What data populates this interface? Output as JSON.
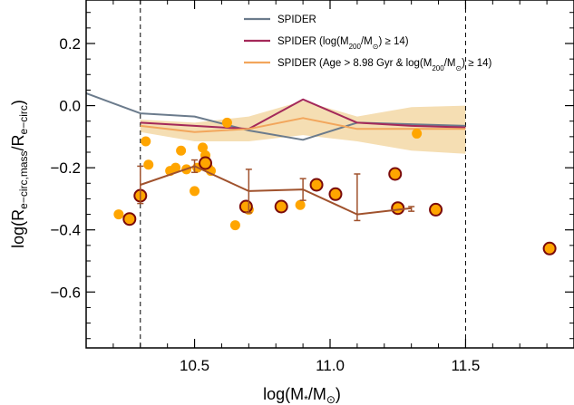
{
  "chart_data": {
    "type": "scatter",
    "title": "",
    "xlabel": "log(M*/M⊙)",
    "ylabel": "log(Re–circ,mass/Re–circ)",
    "xlim": [
      10.1,
      11.9
    ],
    "ylim": [
      -0.78,
      0.34
    ],
    "xticks": [
      10.5,
      11.0,
      11.5
    ],
    "xtick_labels": [
      "10.5",
      "11.0",
      "11.5"
    ],
    "yticks": [
      -0.6,
      -0.4,
      -0.2,
      0.0,
      0.2
    ],
    "ytick_labels": [
      "−0.6",
      "−0.4",
      "−0.2",
      "0.0",
      "0.2"
    ],
    "grid": false,
    "legend_position": "top-right",
    "vlines": [
      10.3,
      11.5
    ],
    "series": [
      {
        "name": "SPIDER",
        "kind": "line",
        "color": "#6b7b8c",
        "x": [
          10.1,
          10.3,
          10.5,
          10.7,
          10.9,
          11.1,
          11.3,
          11.5
        ],
        "y": [
          0.04,
          -0.025,
          -0.035,
          -0.08,
          -0.11,
          -0.055,
          -0.06,
          -0.065
        ]
      },
      {
        "name": "SPIDER (log(M200/M⊙) ≥ 14)",
        "kind": "line",
        "color": "#a4295a",
        "x": [
          10.3,
          10.5,
          10.7,
          10.9,
          11.1,
          11.3,
          11.5
        ],
        "y": [
          -0.055,
          -0.065,
          -0.075,
          0.02,
          -0.055,
          -0.065,
          -0.07
        ]
      },
      {
        "name": "SPIDER (Age > 8.98 Gyr & log(M200/M⊙) ≥ 14)",
        "kind": "line_band",
        "color": "#f2a65c",
        "band_color": "#f5deb3",
        "x": [
          10.3,
          10.5,
          10.7,
          10.9,
          11.1,
          11.3,
          11.5
        ],
        "y": [
          -0.065,
          -0.085,
          -0.075,
          -0.04,
          -0.075,
          -0.075,
          -0.075
        ],
        "y_upper": [
          -0.045,
          -0.055,
          -0.035,
          0.015,
          -0.035,
          -0.005,
          0.0
        ],
        "y_lower": [
          -0.085,
          -0.115,
          -0.115,
          -0.095,
          -0.115,
          -0.145,
          -0.155
        ]
      },
      {
        "name": "",
        "kind": "points",
        "color": "#ffa500",
        "x": [
          10.22,
          10.32,
          10.33,
          10.41,
          10.43,
          10.45,
          10.47,
          10.5,
          10.51,
          10.53,
          10.54,
          10.55,
          10.56,
          10.62,
          10.65,
          10.7,
          10.89,
          11.32
        ],
        "y": [
          -0.35,
          -0.115,
          -0.19,
          -0.21,
          -0.2,
          -0.145,
          -0.205,
          -0.275,
          -0.2,
          -0.135,
          -0.16,
          -0.2,
          -0.21,
          -0.055,
          -0.385,
          -0.335,
          -0.32,
          -0.09
        ]
      },
      {
        "name": "",
        "kind": "points_outlined",
        "color": "#ffa500",
        "edge_color": "#7a0a0a",
        "x": [
          10.26,
          10.3,
          10.54,
          10.69,
          10.82,
          10.95,
          11.02,
          11.24,
          11.25,
          11.39,
          11.81
        ],
        "y": [
          -0.365,
          -0.29,
          -0.185,
          -0.325,
          -0.325,
          -0.255,
          -0.285,
          -0.22,
          -0.33,
          -0.335,
          -0.46
        ]
      },
      {
        "name": "",
        "kind": "line_errorbars",
        "color": "#a0522d",
        "x": [
          10.3,
          10.5,
          10.7,
          10.9,
          11.1,
          11.3
        ],
        "y": [
          -0.255,
          -0.195,
          -0.275,
          -0.27,
          -0.35,
          -0.33
        ],
        "y_upper": [
          -0.195,
          -0.175,
          -0.205,
          -0.235,
          -0.22,
          -0.325
        ],
        "y_lower": [
          -0.315,
          -0.215,
          -0.345,
          -0.305,
          -0.37,
          -0.34
        ]
      }
    ]
  }
}
